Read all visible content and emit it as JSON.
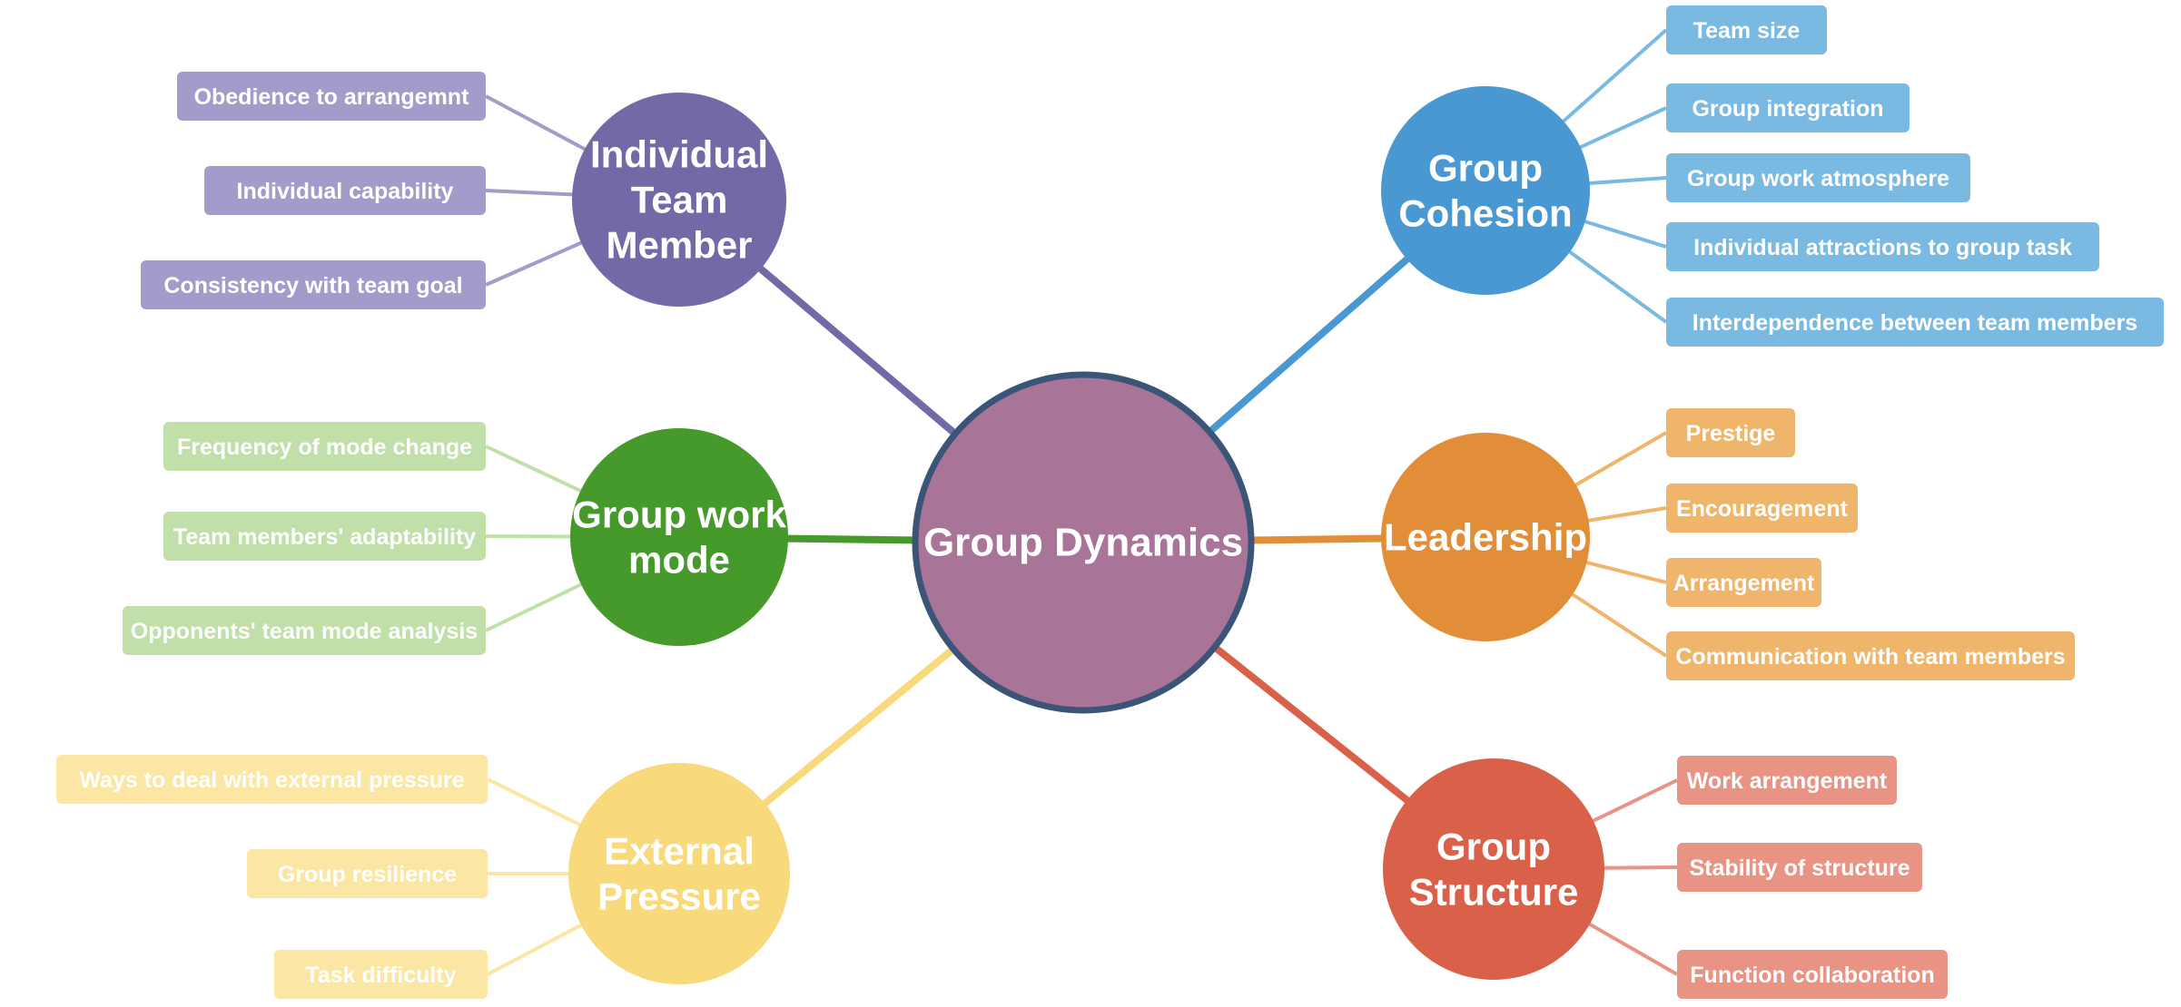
{
  "center": {
    "label": "Group Dynamics",
    "fill": "#a87497",
    "stroke": "#3a5578"
  },
  "branches": [
    {
      "key": "individual-team-member",
      "lines": [
        "Individual",
        "Team",
        "Member"
      ],
      "color": "#726aa6",
      "leaf_color": "#a19cca",
      "leaves": [
        "Obedience to arrangemnt",
        "Individual capability",
        "Consistency with team goal"
      ]
    },
    {
      "key": "group-work-mode",
      "lines": [
        "Group work",
        "mode"
      ],
      "color": "#459a2b",
      "leaf_color": "#c1dfa8",
      "leaves": [
        "Frequency of mode change",
        "Team members' adaptability",
        "Opponents' team mode analysis"
      ]
    },
    {
      "key": "external-pressure",
      "lines": [
        "External",
        "Pressure"
      ],
      "color": "#f8d97c",
      "leaf_color": "#fbe6a4",
      "leaves": [
        "Ways to deal with external pressure",
        "Group resilience",
        "Task difficulty"
      ]
    },
    {
      "key": "group-cohesion",
      "lines": [
        "Group",
        "Cohesion"
      ],
      "color": "#4a98d1",
      "leaf_color": "#7ab9e1",
      "leaves": [
        "Team size",
        "Group integration",
        "Group work atmosphere",
        "Individual attractions to group task",
        "Interdependence between team members"
      ]
    },
    {
      "key": "leadership",
      "lines": [
        "Leadership"
      ],
      "color": "#e28d37",
      "leaf_color": "#eeb56b",
      "leaves": [
        "Prestige",
        "Encouragement",
        "Arrangement",
        "Communication with team members"
      ]
    },
    {
      "key": "group-structure",
      "lines": [
        "Group",
        "Structure"
      ],
      "color": "#d9614a",
      "leaf_color": "#e89383",
      "leaves": [
        "Work arrangement",
        "Stability of structure",
        "Function collaboration"
      ]
    }
  ]
}
